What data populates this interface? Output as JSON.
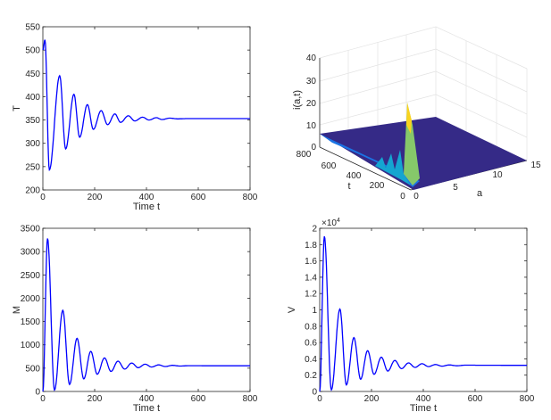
{
  "chart_data": [
    {
      "id": "T",
      "type": "line",
      "xlabel": "Time t",
      "ylabel": "T",
      "xlim": [
        0,
        800
      ],
      "ylim": [
        200,
        550
      ],
      "xticks": [
        "0",
        "200",
        "400",
        "600",
        "800"
      ],
      "yticks": [
        "200",
        "250",
        "300",
        "350",
        "400",
        "450",
        "500",
        "550"
      ],
      "series_color": "#0000ff",
      "extrema": [
        [
          0,
          500
        ],
        [
          8,
          522
        ],
        [
          25,
          243
        ],
        [
          65,
          445
        ],
        [
          88,
          288
        ],
        [
          120,
          405
        ],
        [
          142,
          313
        ],
        [
          172,
          383
        ],
        [
          195,
          330
        ],
        [
          225,
          370
        ],
        [
          250,
          340
        ],
        [
          278,
          363
        ],
        [
          300,
          345
        ],
        [
          330,
          359
        ],
        [
          355,
          348
        ],
        [
          385,
          356
        ],
        [
          410,
          350
        ],
        [
          438,
          355
        ],
        [
          460,
          351
        ],
        [
          490,
          354
        ],
        [
          520,
          352.5
        ],
        [
          560,
          353
        ],
        [
          800,
          353
        ]
      ]
    },
    {
      "id": "i",
      "type": "surface",
      "xlabel": "a",
      "ylabel": "t",
      "zlabel": "i(a,t)",
      "xlim": [
        0,
        15
      ],
      "ylim": [
        0,
        800
      ],
      "zlim": [
        0,
        40
      ],
      "xticks": [
        "0",
        "5",
        "10",
        "15"
      ],
      "yticks": [
        "0",
        "200",
        "400",
        "600",
        "800"
      ],
      "zticks": [
        "0",
        "10",
        "20",
        "30",
        "40"
      ],
      "peak": {
        "a": 0.5,
        "t": 40,
        "i": 20
      },
      "colors": {
        "low": "#352a87",
        "mid": "#0f9ed6",
        "high": "#f9d31e"
      }
    },
    {
      "id": "M",
      "type": "line",
      "xlabel": "Time t",
      "ylabel": "M",
      "xlim": [
        0,
        800
      ],
      "ylim": [
        0,
        3500
      ],
      "xticks": [
        "0",
        "200",
        "400",
        "600",
        "800"
      ],
      "yticks": [
        "0",
        "500",
        "1000",
        "1500",
        "2000",
        "2500",
        "3000",
        "3500"
      ],
      "series_color": "#0000ff",
      "extrema": [
        [
          0,
          0
        ],
        [
          18,
          3280
        ],
        [
          45,
          30
        ],
        [
          77,
          1740
        ],
        [
          103,
          150
        ],
        [
          132,
          1140
        ],
        [
          158,
          270
        ],
        [
          185,
          860
        ],
        [
          210,
          370
        ],
        [
          238,
          720
        ],
        [
          263,
          430
        ],
        [
          290,
          650
        ],
        [
          316,
          480
        ],
        [
          343,
          610
        ],
        [
          368,
          510
        ],
        [
          395,
          585
        ],
        [
          420,
          525
        ],
        [
          447,
          570
        ],
        [
          472,
          535
        ],
        [
          500,
          560
        ],
        [
          530,
          545
        ],
        [
          560,
          552
        ],
        [
          800,
          550
        ]
      ]
    },
    {
      "id": "V",
      "type": "line",
      "xlabel": "Time t",
      "ylabel": "V",
      "xlim": [
        0,
        800
      ],
      "ylim": [
        0,
        20000
      ],
      "multiplier": "×10",
      "multiplier_exp": "4",
      "xticks": [
        "0",
        "200",
        "400",
        "600",
        "800"
      ],
      "yticks": [
        "0",
        "0.2",
        "0.4",
        "0.6",
        "0.8",
        "1",
        "1.2",
        "1.4",
        "1.6",
        "1.8",
        "2"
      ],
      "series_color": "#0000ff",
      "extrema": [
        [
          0,
          0
        ],
        [
          18,
          19000
        ],
        [
          45,
          200
        ],
        [
          78,
          10100
        ],
        [
          103,
          800
        ],
        [
          132,
          6600
        ],
        [
          158,
          1500
        ],
        [
          185,
          5000
        ],
        [
          210,
          2100
        ],
        [
          238,
          4200
        ],
        [
          263,
          2500
        ],
        [
          290,
          3800
        ],
        [
          316,
          2800
        ],
        [
          343,
          3500
        ],
        [
          368,
          2950
        ],
        [
          395,
          3400
        ],
        [
          420,
          3050
        ],
        [
          447,
          3300
        ],
        [
          472,
          3100
        ],
        [
          500,
          3250
        ],
        [
          530,
          3150
        ],
        [
          560,
          3220
        ],
        [
          800,
          3200
        ]
      ]
    }
  ]
}
